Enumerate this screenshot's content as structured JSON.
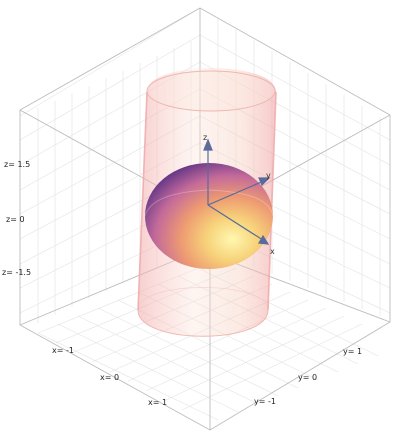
{
  "axes": {
    "x": "x",
    "y": "y",
    "z": "z"
  },
  "ticks": {
    "z": [
      "z= 1.5",
      "z= 0",
      "z= -1.5"
    ],
    "x": [
      "x= -1",
      "x= 0",
      "x= 1"
    ],
    "y": [
      "y= -1",
      "y= 0",
      "y= 1"
    ]
  },
  "colors": {
    "background": "#ffffff",
    "cube_edge": "#bdbdbd",
    "grid": "#e2e2e2",
    "cylinder": "#f3b0a8",
    "axis_arrow": "#5a6a9a",
    "sphere_light": "#fff6a8",
    "sphere_mid": "#f0a070",
    "sphere_dark": "#6a3a8a"
  }
}
